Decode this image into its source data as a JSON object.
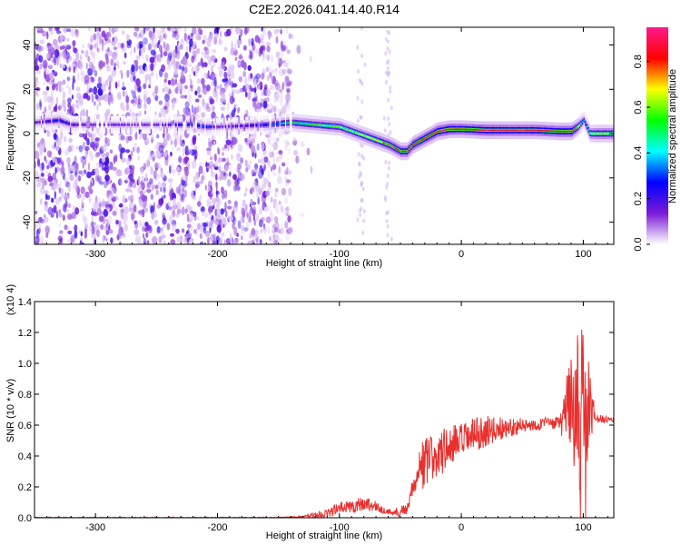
{
  "figure": {
    "title": "C2E2.2026.041.14.40.R14"
  },
  "chart_data": [
    {
      "type": "heatmap",
      "title": "C2E2.2026.041.14.40.R14",
      "xlabel": "Height of straight line (km)",
      "ylabel": "Frequency (Hz)",
      "xlim": [
        -350,
        125
      ],
      "ylim": [
        -50,
        48
      ],
      "x_ticks": [
        -300,
        -200,
        -100,
        0,
        100
      ],
      "x_tick_labels": [
        "-300",
        "-200",
        "-100",
        "0",
        "100"
      ],
      "y_ticks": [
        -40,
        -20,
        0,
        20,
        40
      ],
      "y_tick_labels": [
        "-40",
        "-20",
        "0",
        "20",
        "40"
      ],
      "colorbar": {
        "label": "Normalized spectral amplitude",
        "range": [
          0,
          0.95
        ],
        "ticks": [
          0.0,
          0.2,
          0.4,
          0.6,
          0.8
        ],
        "tick_labels": [
          "0.0",
          "0.2",
          "0.4",
          "0.6",
          "0.8"
        ],
        "colormap": [
          "#ffffff",
          "#7a1bd6",
          "#0000ff",
          "#00ffff",
          "#00ff00",
          "#ffff00",
          "#ff0000",
          "#ff1a8c"
        ]
      },
      "noise_region": {
        "x_from": -350,
        "x_to": -140,
        "level": "low (0.0-0.2)"
      },
      "ridge": {
        "x": [
          -350,
          -330,
          -320,
          -300,
          -250,
          -220,
          -210,
          -200,
          -160,
          -140,
          -120,
          -100,
          -90,
          -80,
          -70,
          -60,
          -50,
          -45,
          -40,
          -30,
          -20,
          -10,
          0,
          20,
          40,
          60,
          80,
          90,
          95,
          100,
          105,
          110,
          125
        ],
        "frequency": [
          5,
          6,
          4,
          4,
          4,
          4,
          3,
          3,
          4,
          5,
          4,
          3,
          1,
          -1,
          -3,
          -5,
          -8,
          -8,
          -5,
          -2,
          1,
          2,
          2,
          1.5,
          1.5,
          1.5,
          1,
          1,
          3,
          6,
          0,
          0,
          0
        ],
        "amplitude": [
          0.15,
          0.3,
          0.2,
          0.15,
          0.15,
          0.3,
          0.3,
          0.15,
          0.3,
          0.5,
          0.55,
          0.6,
          0.6,
          0.65,
          0.7,
          0.75,
          0.8,
          0.8,
          0.8,
          0.85,
          0.9,
          0.9,
          0.85,
          0.9,
          0.85,
          0.85,
          0.85,
          0.9,
          0.7,
          0.3,
          0.6,
          0.7,
          0.7
        ]
      }
    },
    {
      "type": "line",
      "xlabel": "Height of straight line (km)",
      "ylabel": "SNR (10 * v/v)",
      "y_multiplier_label": "(x10 4)",
      "xlim": [
        -350,
        125
      ],
      "ylim": [
        0,
        1.4
      ],
      "x_ticks": [
        -300,
        -200,
        -100,
        0,
        100
      ],
      "x_tick_labels": [
        "-300",
        "-200",
        "-100",
        "0",
        "100"
      ],
      "y_ticks": [
        0.0,
        0.2,
        0.4,
        0.6,
        0.8,
        1.0,
        1.2,
        1.4
      ],
      "y_tick_labels": [
        "0.0",
        "0.2",
        "0.4",
        "0.6",
        "0.8",
        "1.0",
        "1.2",
        "1.4"
      ],
      "line_color": "#e8302e",
      "envelope": {
        "x": [
          -350,
          -300,
          -250,
          -200,
          -150,
          -120,
          -110,
          -100,
          -90,
          -80,
          -70,
          -60,
          -50,
          -45,
          -40,
          -35,
          -30,
          -20,
          -10,
          0,
          10,
          20,
          30,
          40,
          50,
          60,
          70,
          80,
          90,
          95,
          100,
          105,
          110,
          125
        ],
        "y": [
          0.0,
          0.0,
          0.0,
          0.0,
          0.0,
          0.01,
          0.02,
          0.05,
          0.06,
          0.08,
          0.06,
          0.03,
          0.03,
          0.05,
          0.18,
          0.28,
          0.3,
          0.35,
          0.42,
          0.45,
          0.5,
          0.53,
          0.55,
          0.57,
          0.58,
          0.59,
          0.6,
          0.6,
          0.62,
          0.6,
          0.55,
          0.6,
          0.63,
          0.63
        ]
      },
      "noise_amplitude": {
        "x": [
          -350,
          -130,
          -120,
          -100,
          -80,
          -60,
          -40,
          -35,
          -30,
          -10,
          20,
          40,
          60,
          80,
          90,
          95,
          100,
          105,
          110,
          125
        ],
        "a": [
          0.003,
          0.003,
          0.02,
          0.04,
          0.05,
          0.02,
          0.05,
          0.15,
          0.18,
          0.14,
          0.1,
          0.06,
          0.04,
          0.04,
          0.35,
          0.45,
          0.55,
          0.3,
          0.03,
          0.02
        ]
      }
    }
  ]
}
